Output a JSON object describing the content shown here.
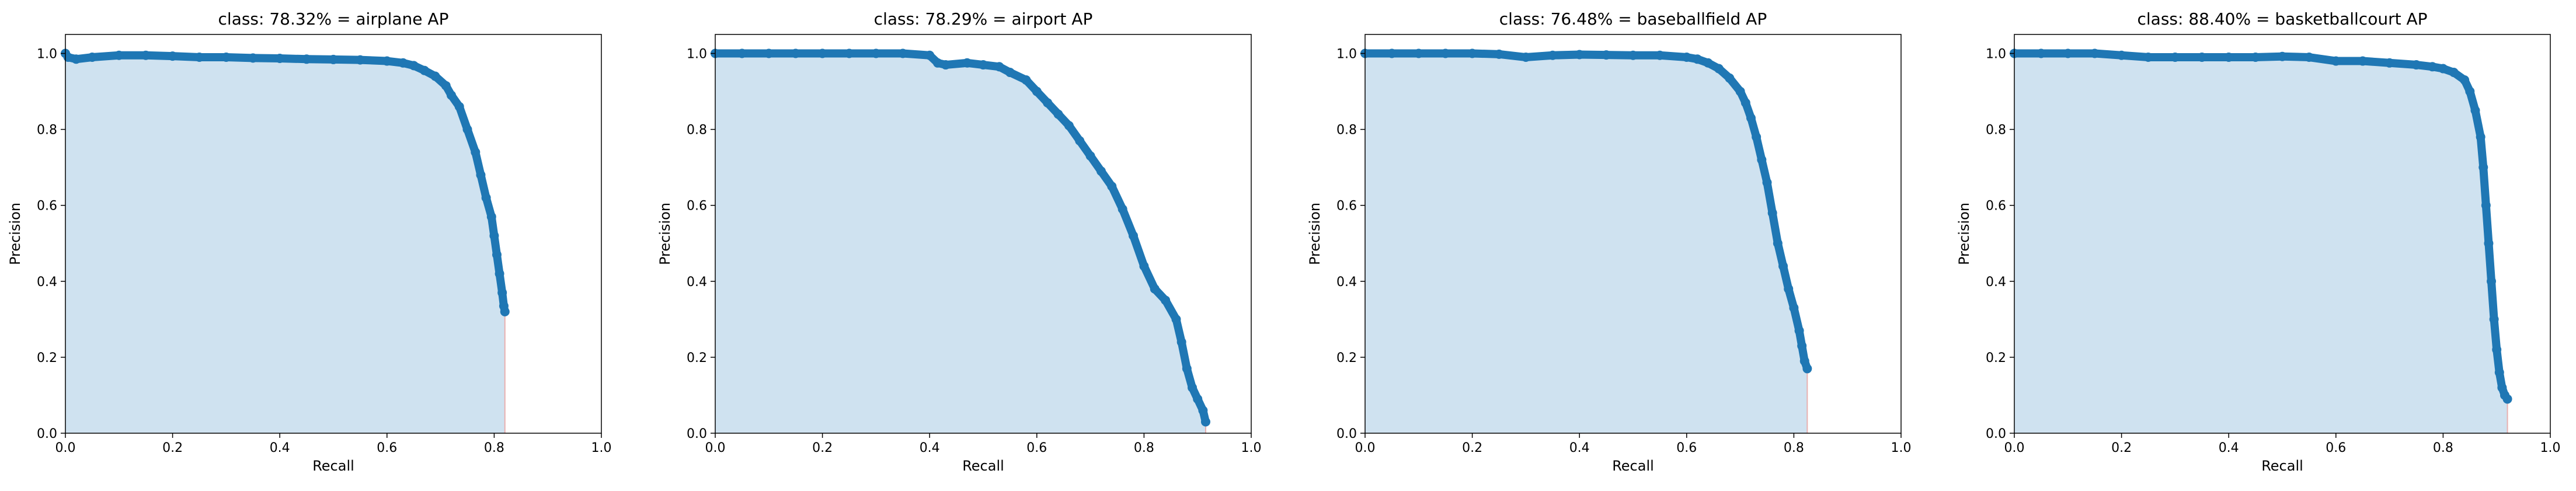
{
  "chart_data": [
    {
      "type": "area",
      "title": "class: 78.32% = airplane AP",
      "xlabel": "Recall",
      "ylabel": "Precision",
      "xlim": [
        0.0,
        1.0
      ],
      "ylim": [
        0.0,
        1.05
      ],
      "xticks": [
        "0.0",
        "0.2",
        "0.4",
        "0.6",
        "0.8",
        "1.0"
      ],
      "yticks": [
        "0.0",
        "0.2",
        "0.4",
        "0.6",
        "0.8",
        "1.0"
      ],
      "legend": "none",
      "grid": false,
      "colors": {
        "line": "#1f77b4",
        "fill": "#cfe2f0",
        "drop_line": "#e8b0b0"
      },
      "series": [
        {
          "x": [
            0.0,
            0.005,
            0.02,
            0.05,
            0.1,
            0.15,
            0.2,
            0.25,
            0.3,
            0.35,
            0.4,
            0.45,
            0.5,
            0.55,
            0.6,
            0.63,
            0.65,
            0.67,
            0.69,
            0.71,
            0.72,
            0.735,
            0.75,
            0.765,
            0.775,
            0.785,
            0.795,
            0.8,
            0.805,
            0.81,
            0.815,
            0.818,
            0.82
          ],
          "y": [
            1.0,
            0.99,
            0.985,
            0.99,
            0.995,
            0.995,
            0.993,
            0.99,
            0.99,
            0.988,
            0.987,
            0.985,
            0.984,
            0.983,
            0.98,
            0.975,
            0.968,
            0.955,
            0.94,
            0.915,
            0.89,
            0.86,
            0.8,
            0.74,
            0.68,
            0.62,
            0.57,
            0.52,
            0.47,
            0.42,
            0.37,
            0.335,
            0.32
          ]
        }
      ]
    },
    {
      "type": "area",
      "title": "class: 78.29% = airport AP",
      "xlabel": "Recall",
      "ylabel": "Precision",
      "xlim": [
        0.0,
        1.0
      ],
      "ylim": [
        0.0,
        1.05
      ],
      "xticks": [
        "0.0",
        "0.2",
        "0.4",
        "0.6",
        "0.8",
        "1.0"
      ],
      "yticks": [
        "0.0",
        "0.2",
        "0.4",
        "0.6",
        "0.8",
        "1.0"
      ],
      "legend": "none",
      "grid": false,
      "colors": {
        "line": "#1f77b4",
        "fill": "#cfe2f0",
        "drop_line": "#e8b0b0"
      },
      "series": [
        {
          "x": [
            0.0,
            0.05,
            0.1,
            0.15,
            0.2,
            0.25,
            0.3,
            0.35,
            0.4,
            0.415,
            0.43,
            0.47,
            0.5,
            0.53,
            0.55,
            0.58,
            0.6,
            0.62,
            0.64,
            0.66,
            0.68,
            0.7,
            0.72,
            0.74,
            0.76,
            0.78,
            0.8,
            0.82,
            0.84,
            0.86,
            0.87,
            0.88,
            0.89,
            0.9,
            0.91,
            0.915
          ],
          "y": [
            1.0,
            1.0,
            1.0,
            1.0,
            1.0,
            1.0,
            1.0,
            1.0,
            0.995,
            0.975,
            0.97,
            0.975,
            0.97,
            0.965,
            0.95,
            0.93,
            0.9,
            0.87,
            0.84,
            0.81,
            0.77,
            0.73,
            0.69,
            0.65,
            0.59,
            0.52,
            0.44,
            0.38,
            0.35,
            0.3,
            0.24,
            0.17,
            0.12,
            0.09,
            0.06,
            0.03
          ]
        }
      ]
    },
    {
      "type": "area",
      "title": "class: 76.48% = baseballfield AP",
      "xlabel": "Recall",
      "ylabel": "Precision",
      "xlim": [
        0.0,
        1.0
      ],
      "ylim": [
        0.0,
        1.05
      ],
      "xticks": [
        "0.0",
        "0.2",
        "0.4",
        "0.6",
        "0.8",
        "1.0"
      ],
      "yticks": [
        "0.0",
        "0.2",
        "0.4",
        "0.6",
        "0.8",
        "1.0"
      ],
      "legend": "none",
      "grid": false,
      "colors": {
        "line": "#1f77b4",
        "fill": "#cfe2f0",
        "drop_line": "#e8b0b0"
      },
      "series": [
        {
          "x": [
            0.0,
            0.05,
            0.1,
            0.15,
            0.2,
            0.25,
            0.3,
            0.35,
            0.4,
            0.45,
            0.5,
            0.55,
            0.6,
            0.62,
            0.64,
            0.66,
            0.68,
            0.7,
            0.71,
            0.72,
            0.73,
            0.74,
            0.75,
            0.76,
            0.77,
            0.78,
            0.79,
            0.8,
            0.81,
            0.815,
            0.82,
            0.825
          ],
          "y": [
            1.0,
            1.0,
            1.0,
            1.0,
            1.0,
            0.998,
            0.99,
            0.995,
            0.997,
            0.996,
            0.995,
            0.995,
            0.99,
            0.985,
            0.975,
            0.96,
            0.935,
            0.9,
            0.87,
            0.83,
            0.78,
            0.72,
            0.66,
            0.58,
            0.5,
            0.44,
            0.38,
            0.33,
            0.27,
            0.23,
            0.19,
            0.17
          ]
        }
      ]
    },
    {
      "type": "area",
      "title": "class: 88.40% = basketballcourt AP",
      "xlabel": "Recall",
      "ylabel": "Precision",
      "xlim": [
        0.0,
        1.0
      ],
      "ylim": [
        0.0,
        1.05
      ],
      "xticks": [
        "0.0",
        "0.2",
        "0.4",
        "0.6",
        "0.8",
        "1.0"
      ],
      "yticks": [
        "0.0",
        "0.2",
        "0.4",
        "0.6",
        "0.8",
        "1.0"
      ],
      "legend": "none",
      "grid": false,
      "colors": {
        "line": "#1f77b4",
        "fill": "#cfe2f0",
        "drop_line": "#e8b0b0"
      },
      "series": [
        {
          "x": [
            0.0,
            0.05,
            0.1,
            0.15,
            0.2,
            0.25,
            0.3,
            0.35,
            0.4,
            0.45,
            0.5,
            0.55,
            0.6,
            0.65,
            0.7,
            0.75,
            0.78,
            0.8,
            0.82,
            0.84,
            0.85,
            0.86,
            0.87,
            0.875,
            0.88,
            0.885,
            0.89,
            0.895,
            0.9,
            0.905,
            0.91,
            0.915,
            0.92
          ],
          "y": [
            1.0,
            1.0,
            1.0,
            1.0,
            0.995,
            0.99,
            0.99,
            0.99,
            0.99,
            0.99,
            0.992,
            0.99,
            0.98,
            0.98,
            0.975,
            0.97,
            0.965,
            0.96,
            0.95,
            0.93,
            0.9,
            0.85,
            0.78,
            0.7,
            0.6,
            0.5,
            0.4,
            0.3,
            0.22,
            0.16,
            0.12,
            0.1,
            0.09
          ]
        }
      ]
    }
  ]
}
